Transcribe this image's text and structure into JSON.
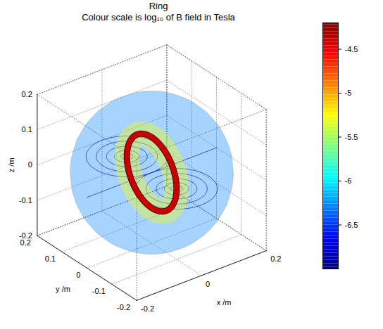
{
  "chart_data": {
    "type": "surface3d",
    "title": "Ring",
    "subtitle": "Colour scale is log₁₀ of B field in Tesla",
    "x_label": "x /m",
    "y_label": "y /m",
    "z_label": "z /m",
    "xlim": [
      -0.2,
      0.2
    ],
    "ylim": [
      -0.2,
      0.2
    ],
    "zlim": [
      -0.2,
      0.2
    ],
    "xticks": [
      -0.2,
      0,
      0.2
    ],
    "yticks": [
      -0.2,
      -0.1,
      0,
      0.1,
      0.2
    ],
    "zticks": [
      -0.2,
      -0.1,
      0,
      0.1,
      0.2
    ],
    "grid": true,
    "colorbar": {
      "range": [
        -7.0,
        -4.2
      ],
      "ticks": [
        -6.5,
        -6,
        -5.5,
        -5,
        -4.5
      ]
    },
    "surfaces": [
      {
        "shape": "sphere",
        "radius": 0.2,
        "log10_B": -6.3
      },
      {
        "shape": "torus",
        "radius": 0.1,
        "tube_radius": 0.03,
        "log10_B": -5.3
      },
      {
        "shape": "torus",
        "radius": 0.1,
        "tube_radius": 0.006,
        "log10_B": -4.4
      }
    ],
    "field_lines": {
      "color": "#2233cc"
    }
  }
}
